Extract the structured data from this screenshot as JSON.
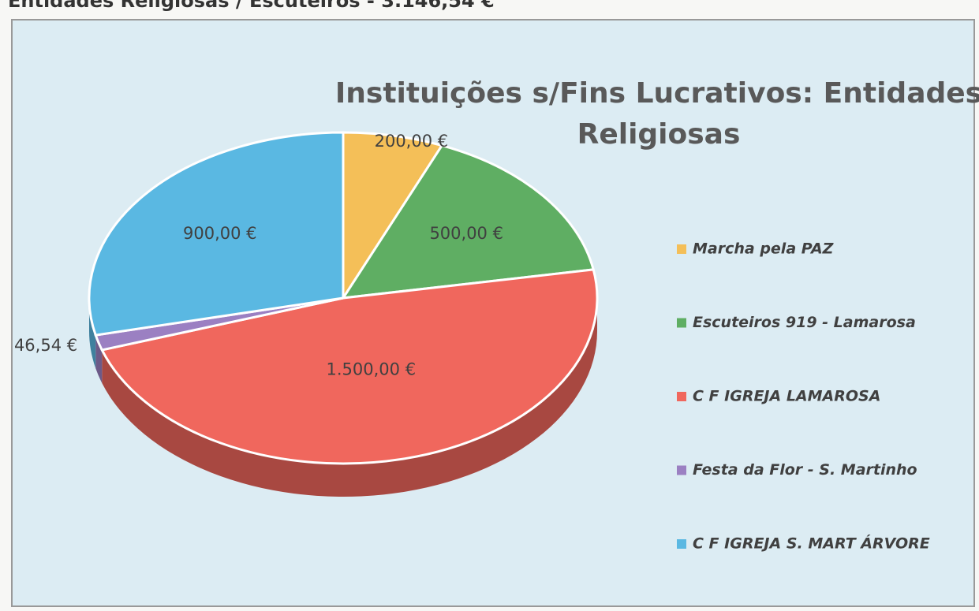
{
  "heading": "Entidades Religiosas / Escuteiros - 3.146,54 €",
  "chart_data": {
    "type": "pie",
    "title": "Instituições s/Fins Lucrativos: Entidades Religiosas",
    "categories": [
      "Marcha pela PAZ",
      "Escuteiros 919 - Lamarosa",
      "C F IGREJA LAMAROSA",
      "Festa da Flor - S. Martinho",
      "C F IGREJA S. MART ÁRVORE"
    ],
    "values": [
      200,
      500,
      1500,
      46.54,
      900
    ],
    "value_labels": [
      "200,00 €",
      "500,00 €",
      "1.500,00 €",
      "46,54 €",
      "900,00 €"
    ],
    "colors": [
      "#f4bf58",
      "#5fae63",
      "#f0675d",
      "#9b80c2",
      "#5ab8e2"
    ],
    "legend": "right"
  }
}
